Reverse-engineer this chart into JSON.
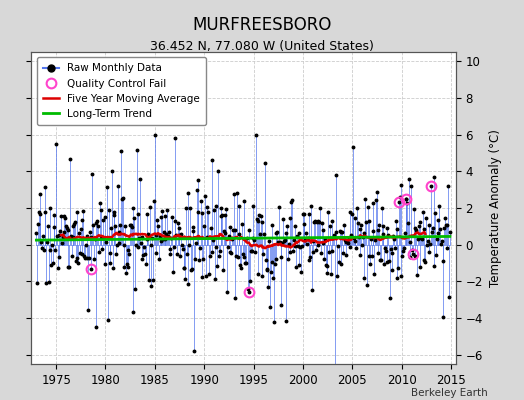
{
  "title": "MURFREESBORO",
  "subtitle": "36.452 N, 77.080 W (United States)",
  "right_ylabel": "Temperature Anomaly (°C)",
  "xlabel_credit": "Berkeley Earth",
  "xlim": [
    1972.5,
    2015.5
  ],
  "ylim": [
    -6.5,
    10.5
  ],
  "yticks": [
    -6,
    -4,
    -2,
    0,
    2,
    4,
    6,
    8,
    10
  ],
  "xticks": [
    1975,
    1980,
    1985,
    1990,
    1995,
    2000,
    2005,
    2010,
    2015
  ],
  "x_start": 1973.0,
  "x_end": 2014.9,
  "n_months": 504,
  "seed": 17,
  "bar_color": "#5577EE",
  "dot_color": "#000000",
  "ma_color": "#DD0000",
  "trend_color": "#00BB00",
  "qc_color": "#FF44CC",
  "plot_bg": "#FFFFFF",
  "fig_bg": "#D8D8D8",
  "legend_items": [
    "Raw Monthly Data",
    "Quality Control Fail",
    "Five Year Moving Average",
    "Long-Term Trend"
  ]
}
